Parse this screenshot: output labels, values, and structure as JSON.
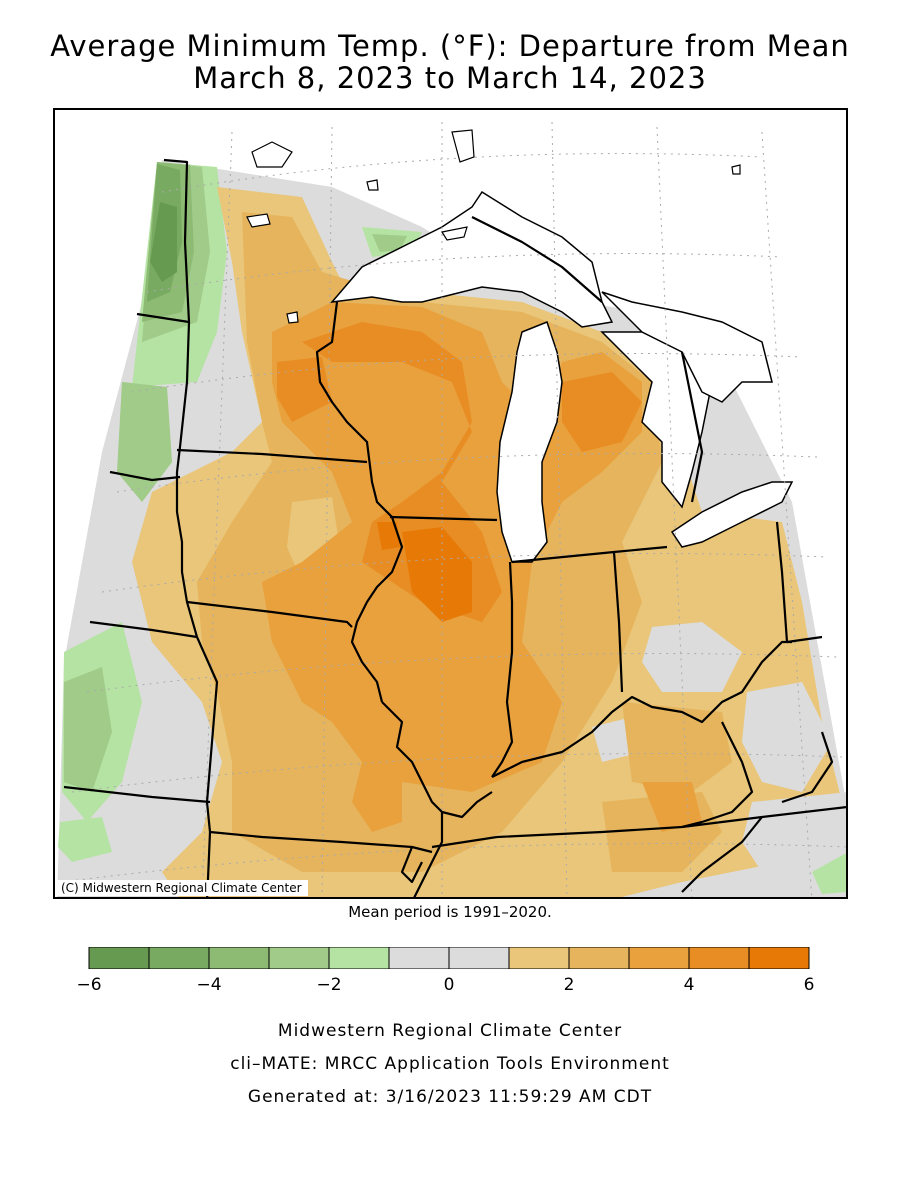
{
  "title_line1": "Average Minimum Temp. (°F): Departure from Mean",
  "title_line2": "March 8, 2023 to March 14, 2023",
  "credit": "(C) Midwestern Regional Climate Center",
  "mean_period": "Mean period is 1991–2020.",
  "legend": {
    "colors": [
      "#679a51",
      "#78aa62",
      "#8dbb74",
      "#a0cb88",
      "#b5e3a3",
      "#dcdcdc",
      "#dcdcdc",
      "#e9c679",
      "#e6b45c",
      "#e9a13d",
      "#e88d23",
      "#e77a06"
    ],
    "tick_labels": [
      "−6",
      "−4",
      "−2",
      "0",
      "2",
      "4",
      "6"
    ]
  },
  "footer": {
    "line1": "Midwestern Regional Climate Center",
    "line2": "cli–MATE: MRCC Application Tools Environment",
    "line3": "Generated at: 3/16/2023 11:59:29 AM CDT"
  }
}
